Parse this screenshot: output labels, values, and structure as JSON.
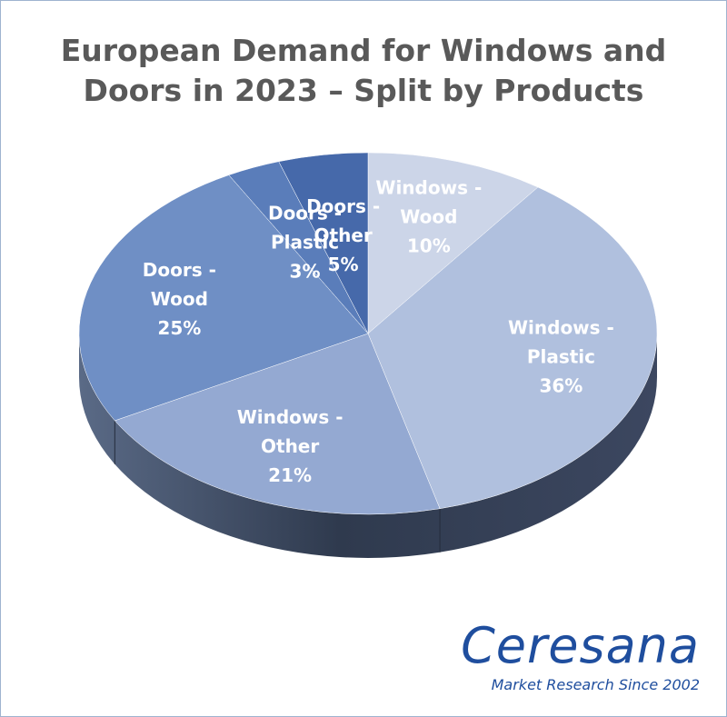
{
  "chart_data": {
    "type": "pie",
    "title_lines": [
      "European Demand for Windows and",
      "Doors in 2023 – Split by Products"
    ],
    "slices": [
      {
        "label_lines": [
          "Windows -",
          "Wood"
        ],
        "value": 10,
        "value_label": "10%",
        "color": "#ccd5e8"
      },
      {
        "label_lines": [
          "Windows -",
          "Plastic"
        ],
        "value": 36,
        "value_label": "36%",
        "color": "#b0c0de"
      },
      {
        "label_lines": [
          "Windows -",
          "Other"
        ],
        "value": 21,
        "value_label": "21%",
        "color": "#94a9d2"
      },
      {
        "label_lines": [
          "Doors -",
          "Wood"
        ],
        "value": 25,
        "value_label": "25%",
        "color": "#6f8fc5"
      },
      {
        "label_lines": [
          "Doors -",
          "Plastic"
        ],
        "value": 3,
        "value_label": "3%",
        "color": "#5a7dba"
      },
      {
        "label_lines": [
          "Doors -",
          "Other"
        ],
        "value": 5,
        "value_label": "5%",
        "color": "#4669aa"
      }
    ]
  },
  "logo": {
    "name": "Ceresana",
    "tagline": "Market Research Since 2002"
  }
}
